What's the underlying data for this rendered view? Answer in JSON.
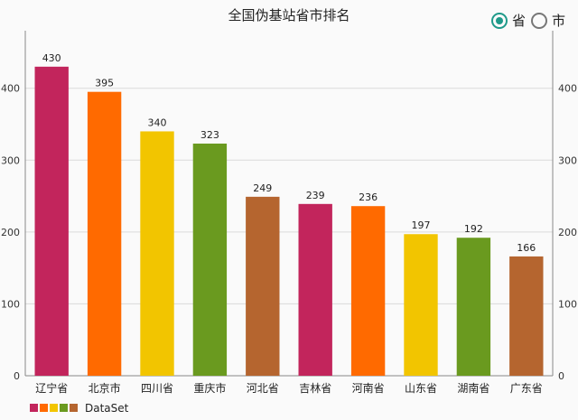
{
  "title": "全国伪基站省市排名",
  "toggle": {
    "options": [
      {
        "label": "省",
        "checked": true
      },
      {
        "label": "市",
        "checked": false
      }
    ]
  },
  "colors": [
    "#c2255c",
    "#ff6a00",
    "#f2c500",
    "#6a9a1f",
    "#b5652f"
  ],
  "legend": {
    "label": "DataSet"
  },
  "chart_data": {
    "type": "bar",
    "categories": [
      "辽宁省",
      "北京市",
      "四川省",
      "重庆市",
      "河北省",
      "吉林省",
      "河南省",
      "山东省",
      "湖南省",
      "广东省"
    ],
    "values": [
      430,
      395,
      340,
      323,
      249,
      239,
      236,
      197,
      192,
      166
    ],
    "ylim": [
      0,
      470
    ],
    "yticks": [
      0,
      100,
      200,
      300,
      400
    ],
    "grid": true,
    "legend_position": "bottom-left",
    "series": [
      {
        "name": "DataSet",
        "values": [
          430,
          395,
          340,
          323,
          249,
          239,
          236,
          197,
          192,
          166
        ]
      }
    ]
  }
}
